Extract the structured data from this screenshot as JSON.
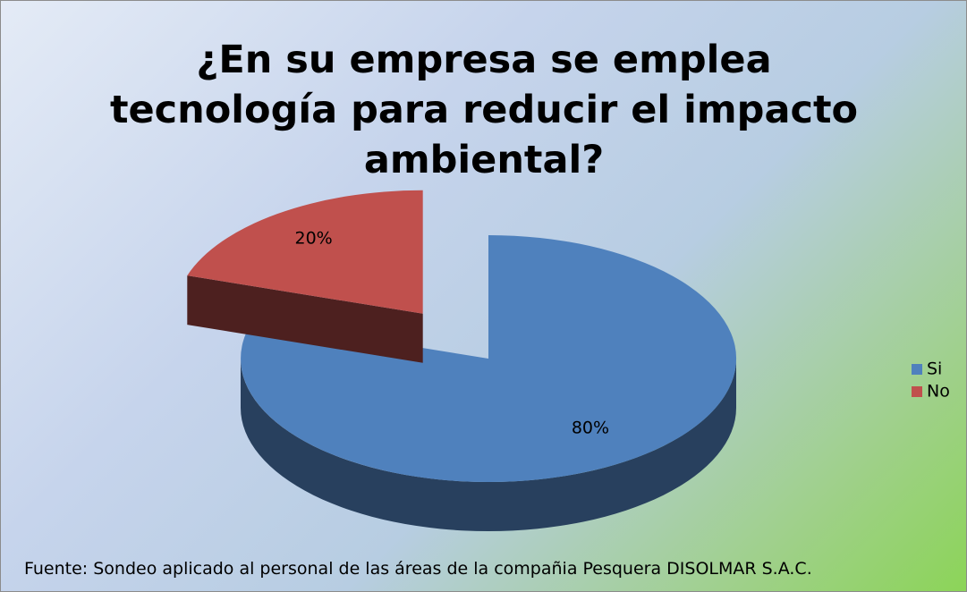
{
  "chart_data": {
    "type": "pie",
    "title": "¿En su empresa se emplea tecnología para reducir el impacto ambiental?",
    "categories": [
      "Si",
      "No"
    ],
    "values": [
      80,
      20
    ],
    "value_labels": [
      "80%",
      "20%"
    ],
    "colors": [
      "#4f81bd",
      "#c0504d"
    ],
    "legend": "right",
    "note": "Fuente: Sondeo aplicado al personal de las áreas de la compañia Pesquera DISOLMAR S.A.C."
  }
}
